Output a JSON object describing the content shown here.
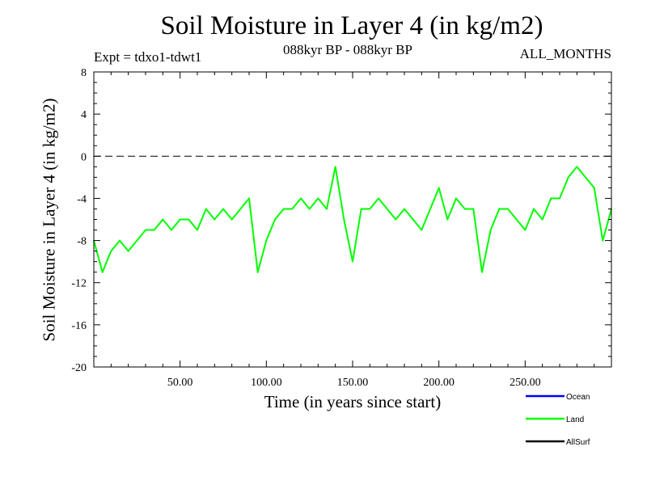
{
  "chart_data": {
    "type": "line",
    "title": "Soil Moisture in Layer 4 (in kg/m2)",
    "subtitle_left": "Expt = tdxo1-tdwt1",
    "subtitle_center": "088kyr BP - 088kyr BP",
    "subtitle_right": "ALL_MONTHS",
    "xlabel": "Time (in years since start)",
    "ylabel": "Soil Moisture in Layer 4 (in kg/m2)",
    "xlim": [
      0,
      300
    ],
    "ylim": [
      -20,
      8
    ],
    "x_ticks": [
      50,
      100,
      150,
      200,
      250
    ],
    "x_tick_labels": [
      "50.00",
      "100.00",
      "150.00",
      "200.00",
      "250.00"
    ],
    "y_ticks": [
      -20,
      -16,
      -12,
      -8,
      -4,
      0,
      4,
      8
    ],
    "y_tick_labels": [
      "-20",
      "-16",
      "-12",
      "-8",
      "-4",
      "0",
      "4",
      "8"
    ],
    "reference_line": {
      "y": 0,
      "style": "dashed"
    },
    "legend_position": "bottom-right",
    "series": [
      {
        "name": "Ocean",
        "color": "#0000ff",
        "values": []
      },
      {
        "name": "Land",
        "color": "#00ff00",
        "x": [
          0,
          5,
          10,
          15,
          20,
          25,
          30,
          35,
          40,
          45,
          50,
          55,
          60,
          65,
          70,
          75,
          80,
          85,
          90,
          95,
          100,
          105,
          110,
          115,
          120,
          125,
          130,
          135,
          140,
          145,
          150,
          155,
          160,
          165,
          170,
          175,
          180,
          185,
          190,
          195,
          200,
          205,
          210,
          215,
          220,
          225,
          230,
          235,
          240,
          245,
          250,
          255,
          260,
          265,
          270,
          275,
          280,
          285,
          290,
          295,
          300
        ],
        "values": [
          -8,
          -11,
          -9,
          -8,
          -9,
          -8,
          -7,
          -7,
          -6,
          -7,
          -6,
          -6,
          -7,
          -5,
          -6,
          -5,
          -6,
          -5,
          -4,
          -11,
          -8,
          -6,
          -5,
          -5,
          -4,
          -5,
          -4,
          -5,
          -1,
          -6,
          -10,
          -5,
          -5,
          -4,
          -5,
          -6,
          -5,
          -6,
          -7,
          -5,
          -3,
          -6,
          -4,
          -5,
          -5,
          -11,
          -7,
          -5,
          -5,
          -6,
          -7,
          -5,
          -6,
          -4,
          -4,
          -2,
          -1,
          -2,
          -3,
          -8,
          -5
        ]
      },
      {
        "name": "AllSurf",
        "color": "#000000",
        "values": []
      }
    ]
  }
}
